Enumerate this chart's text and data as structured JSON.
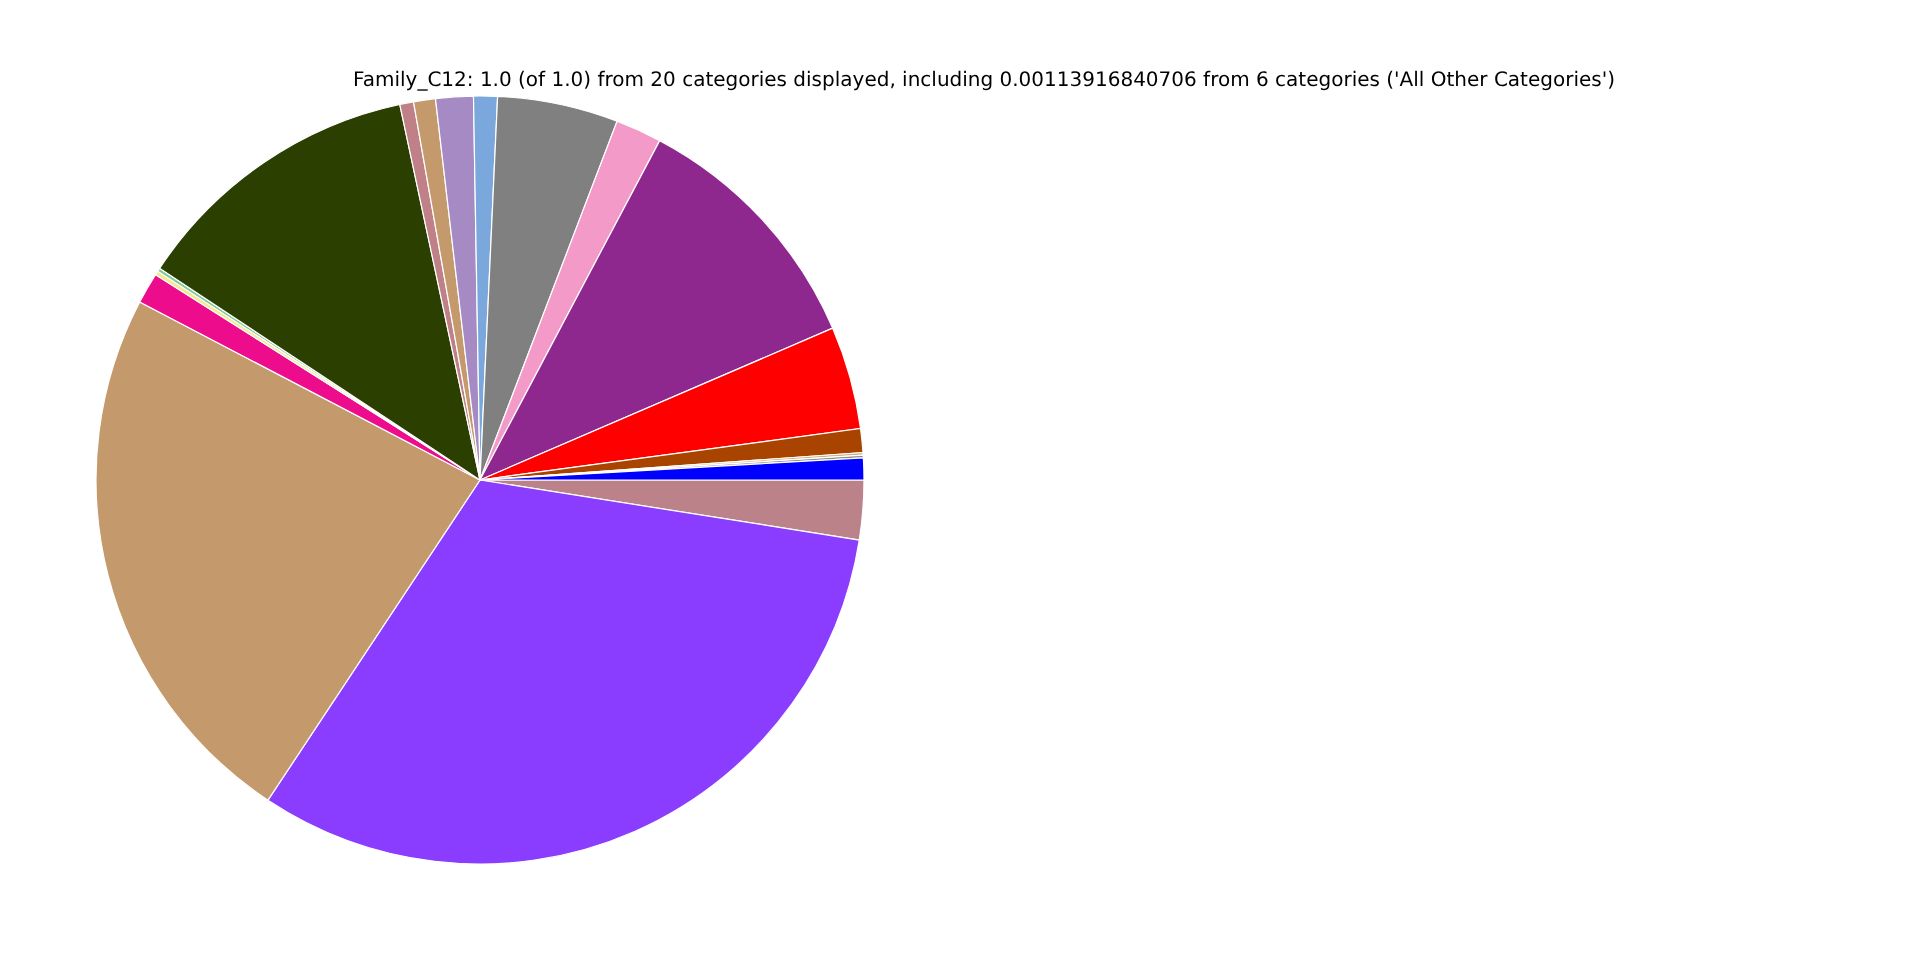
{
  "chart_data": {
    "type": "pie",
    "title": "Family_C12: 1.0 (of 1.0) from 20 categories displayed, including 0.00113916840706 from 6 categories ('All Other Categories')",
    "categories": [
      null,
      null,
      null,
      null,
      null,
      null,
      null,
      null,
      null,
      null,
      null,
      null,
      null,
      null,
      null,
      null,
      null,
      null,
      null
    ],
    "values": [
      2.5,
      31.81,
      23.36,
      1.31,
      0.17,
      0.14,
      12.36,
      0.58,
      0.92,
      1.58,
      1.0,
      5.08,
      1.94,
      10.78,
      4.33,
      1.0,
      0.11,
      0.11,
      0.92
    ],
    "colors": [
      "#bc8289",
      "#8b3dff",
      "#c49a6c",
      "#ec0c8c",
      "#f5e98c",
      "#7fc99a",
      "#2b3f00",
      "#bf8087",
      "#c49a6c",
      "#a68ac4",
      "#7aa7dc",
      "#808080",
      "#f39ac8",
      "#8e278e",
      "#ff0000",
      "#a84400",
      "#d4b07a",
      "#8c8c8c",
      "#0000ff"
    ]
  }
}
